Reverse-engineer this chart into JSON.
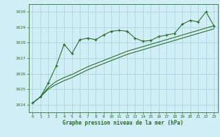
{
  "xlabel": "Graphe pression niveau de la mer (hPa)",
  "background_color": "#d0eef5",
  "grid_color": "#b0d8e0",
  "line_color": "#2d6a2d",
  "ylim": [
    1023.5,
    1030.5
  ],
  "xlim": [
    -0.5,
    23.5
  ],
  "yticks": [
    1024,
    1025,
    1026,
    1027,
    1028,
    1029,
    1030
  ],
  "xticks": [
    0,
    1,
    2,
    3,
    4,
    5,
    6,
    7,
    8,
    9,
    10,
    11,
    12,
    13,
    14,
    15,
    16,
    17,
    18,
    19,
    20,
    21,
    22,
    23
  ],
  "main_series": [
    1024.1,
    1024.5,
    1025.4,
    1026.5,
    1027.9,
    1027.3,
    1028.2,
    1028.3,
    1028.2,
    1028.5,
    1028.75,
    1028.8,
    1028.75,
    1028.3,
    1028.1,
    1028.15,
    1028.4,
    1028.5,
    1028.6,
    1029.2,
    1029.45,
    1029.35,
    1030.0,
    1029.1
  ],
  "line1": [
    1024.1,
    1024.5,
    1025.1,
    1025.5,
    1025.75,
    1025.95,
    1026.2,
    1026.45,
    1026.65,
    1026.85,
    1027.05,
    1027.25,
    1027.45,
    1027.6,
    1027.75,
    1027.9,
    1028.05,
    1028.2,
    1028.35,
    1028.5,
    1028.65,
    1028.8,
    1028.95,
    1029.1
  ],
  "line2": [
    1024.1,
    1024.5,
    1025.0,
    1025.3,
    1025.55,
    1025.75,
    1026.0,
    1026.25,
    1026.45,
    1026.65,
    1026.85,
    1027.05,
    1027.25,
    1027.4,
    1027.55,
    1027.7,
    1027.85,
    1028.0,
    1028.15,
    1028.3,
    1028.45,
    1028.6,
    1028.75,
    1028.9
  ]
}
